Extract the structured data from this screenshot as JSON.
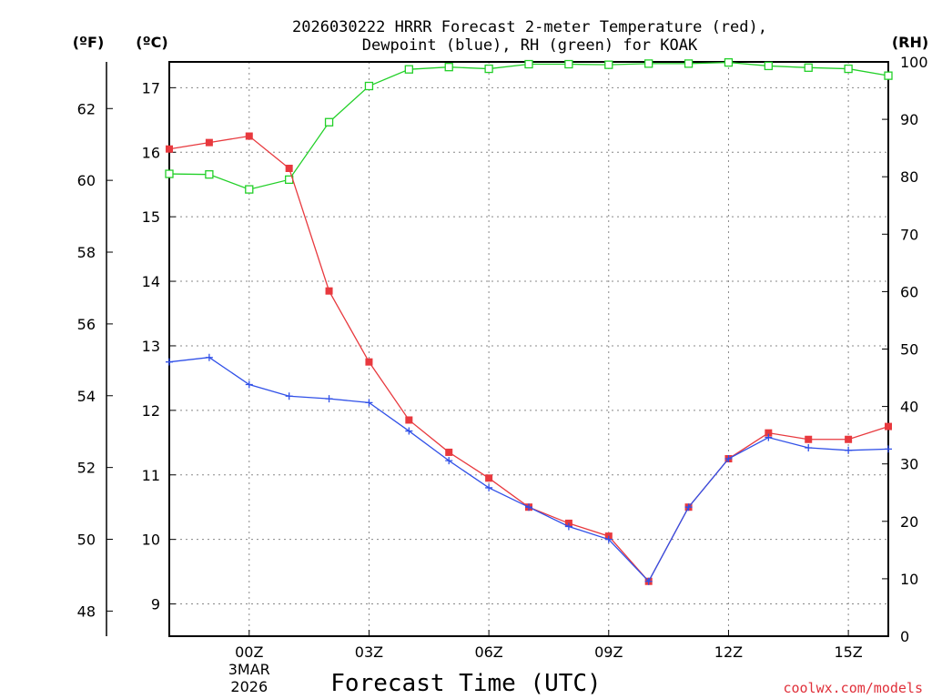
{
  "chart_data": {
    "type": "line",
    "title_line1": "2026030222 HRRR Forecast 2-meter Temperature (red),",
    "title_line2": "Dewpoint (blue), RH (green) for KOAK",
    "xlabel": "Forecast Time (UTC)",
    "credit": "coolwx.com/models",
    "units": {
      "fahrenheit": "(ºF)",
      "celsius": "(ºC)",
      "rh": "(RH)"
    },
    "x_range": [
      -2,
      16
    ],
    "x_ticks": [
      {
        "x": 0,
        "label": "00Z"
      },
      {
        "x": 3,
        "label": "03Z"
      },
      {
        "x": 6,
        "label": "06Z"
      },
      {
        "x": 9,
        "label": "09Z"
      },
      {
        "x": 12,
        "label": "12Z"
      },
      {
        "x": 15,
        "label": "15Z"
      }
    ],
    "date_label": {
      "x": 0,
      "line1": "3MAR",
      "line2": "2026"
    },
    "axes": {
      "celsius": {
        "range": [
          8.5,
          17.4
        ],
        "ticks": [
          "9",
          "10",
          "11",
          "12",
          "13",
          "14",
          "15",
          "16",
          "17"
        ]
      },
      "fahrenheit": {
        "range": [
          47.3,
          63.3
        ],
        "ticks": [
          "48",
          "50",
          "52",
          "54",
          "56",
          "58",
          "60",
          "62"
        ]
      },
      "rh": {
        "range": [
          0,
          100
        ],
        "ticks": [
          "0",
          "10",
          "20",
          "30",
          "40",
          "50",
          "60",
          "70",
          "80",
          "90",
          "100"
        ]
      }
    },
    "hours": [
      -2,
      -1,
      0,
      1,
      2,
      3,
      4,
      5,
      6,
      7,
      8,
      9,
      10,
      11,
      12,
      13,
      14,
      15,
      16
    ],
    "series": [
      {
        "name": "Temperature",
        "axis": "celsius",
        "color": "#e8393e",
        "marker": "filled-square",
        "values": [
          16.05,
          16.15,
          16.25,
          15.75,
          13.85,
          12.75,
          11.85,
          11.35,
          10.95,
          10.5,
          10.25,
          10.05,
          9.35,
          10.5,
          11.25,
          11.65,
          11.55,
          11.55,
          11.75
        ]
      },
      {
        "name": "Dewpoint",
        "axis": "celsius",
        "color": "#3050e8",
        "marker": "plus",
        "values": [
          12.75,
          12.82,
          12.4,
          12.22,
          12.18,
          12.12,
          11.68,
          11.22,
          10.8,
          10.5,
          10.2,
          10.0,
          9.35,
          10.5,
          11.25,
          11.58,
          11.42,
          11.38,
          11.4
        ]
      },
      {
        "name": "RH",
        "axis": "rh",
        "color": "#22d028",
        "marker": "open-square",
        "values": [
          80.5,
          80.4,
          77.8,
          79.5,
          89.5,
          95.8,
          98.7,
          99.1,
          98.8,
          99.6,
          99.6,
          99.5,
          99.7,
          99.7,
          99.9,
          99.3,
          99.0,
          98.8,
          97.6
        ]
      }
    ]
  }
}
